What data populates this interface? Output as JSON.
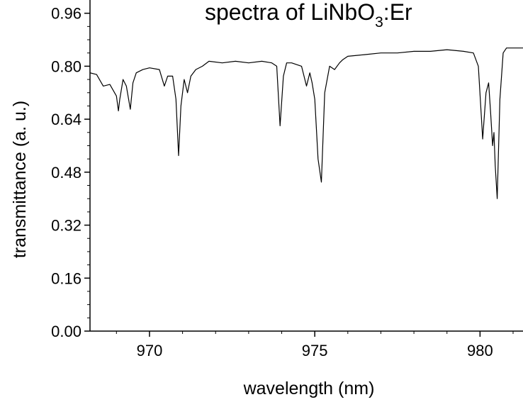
{
  "chart_data": {
    "type": "line",
    "title": {
      "prefix": "spectra of LiNbO",
      "subscript": "3",
      "suffix": ":Er"
    },
    "xlabel": "wavelength (nm)",
    "ylabel": "transmittance (a. u.)",
    "xlim": [
      968.2,
      981.3
    ],
    "ylim": [
      0.0,
      1.0
    ],
    "x_ticks": [
      970,
      975,
      980
    ],
    "y_ticks": [
      0.0,
      0.16,
      0.32,
      0.48,
      0.64,
      0.8,
      0.96
    ],
    "x_tick_labels": [
      "970",
      "975",
      "980"
    ],
    "y_tick_labels": [
      "0.00",
      "0.16",
      "0.32",
      "0.48",
      "0.64",
      "0.80",
      "0.96"
    ],
    "grid": false,
    "series": [
      {
        "color": "#000000",
        "x": [
          968.2,
          968.4,
          968.6,
          968.8,
          969.0,
          969.06,
          969.1,
          969.2,
          969.3,
          969.42,
          969.5,
          969.6,
          969.8,
          970.0,
          970.3,
          970.45,
          970.55,
          970.7,
          970.8,
          970.88,
          970.95,
          971.05,
          971.15,
          971.25,
          971.4,
          971.6,
          971.8,
          972.2,
          972.6,
          973.0,
          973.4,
          973.7,
          973.85,
          973.95,
          974.05,
          974.15,
          974.3,
          974.6,
          974.75,
          974.85,
          974.92,
          975.0,
          975.1,
          975.2,
          975.3,
          975.45,
          975.6,
          975.75,
          975.85,
          976.0,
          976.5,
          977.0,
          977.5,
          978.0,
          978.5,
          979.0,
          979.5,
          979.8,
          979.95,
          980.08,
          980.18,
          980.26,
          980.32,
          980.38,
          980.42,
          980.46,
          980.52,
          980.6,
          980.7,
          980.8,
          981.0,
          981.3
        ],
        "y": [
          0.78,
          0.775,
          0.74,
          0.745,
          0.71,
          0.665,
          0.7,
          0.76,
          0.74,
          0.67,
          0.75,
          0.78,
          0.79,
          0.795,
          0.79,
          0.74,
          0.77,
          0.77,
          0.7,
          0.53,
          0.68,
          0.76,
          0.72,
          0.77,
          0.79,
          0.8,
          0.815,
          0.81,
          0.815,
          0.81,
          0.815,
          0.81,
          0.8,
          0.62,
          0.77,
          0.81,
          0.81,
          0.8,
          0.74,
          0.78,
          0.75,
          0.7,
          0.52,
          0.45,
          0.72,
          0.8,
          0.79,
          0.81,
          0.82,
          0.83,
          0.835,
          0.84,
          0.84,
          0.845,
          0.845,
          0.85,
          0.845,
          0.84,
          0.8,
          0.58,
          0.72,
          0.75,
          0.66,
          0.56,
          0.6,
          0.5,
          0.4,
          0.7,
          0.84,
          0.855,
          0.855,
          0.855
        ]
      }
    ]
  }
}
